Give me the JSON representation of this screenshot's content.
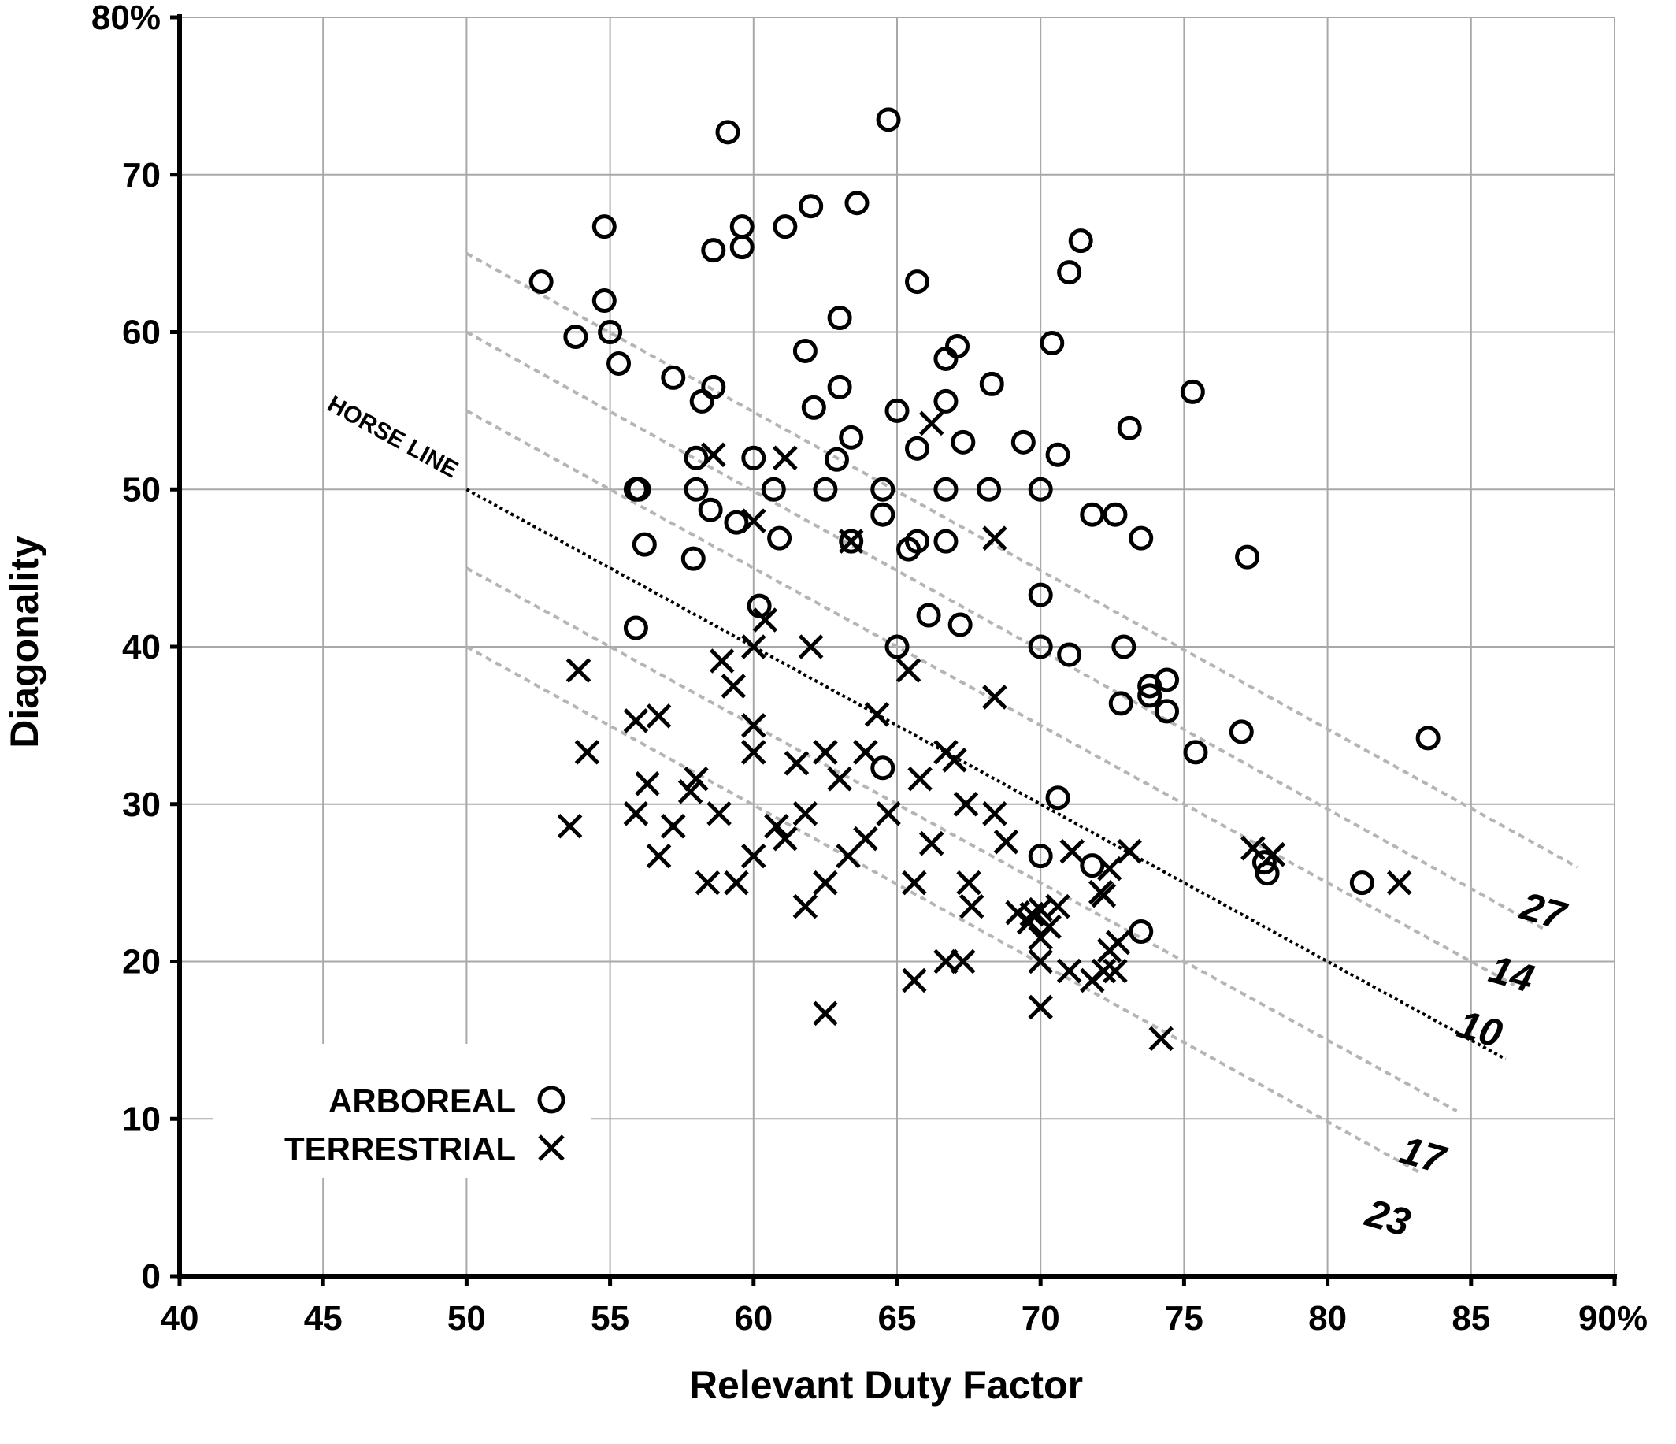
{
  "chart_data": {
    "type": "scatter",
    "xlabel": "Relevant Duty Factor",
    "ylabel": "Diagonality",
    "xlim": [
      40,
      90
    ],
    "ylim": [
      0,
      80
    ],
    "x_ticks": [
      "40",
      "45",
      "50",
      "55",
      "60",
      "65",
      "70",
      "75",
      "80",
      "85",
      "90%"
    ],
    "y_ticks": [
      "0",
      "10",
      "20",
      "30",
      "40",
      "50",
      "60",
      "70",
      "80%"
    ],
    "grid": true,
    "legend_position": "bottom-left",
    "legend": [
      {
        "label": "ARBOREAL",
        "marker": "circle"
      },
      {
        "label": "TERRESTRIAL",
        "marker": "x"
      }
    ],
    "series": [
      {
        "name": "ARBOREAL",
        "marker": "circle",
        "points": [
          [
            52.6,
            63.2
          ],
          [
            53.8,
            59.7
          ],
          [
            54.8,
            62.0
          ],
          [
            54.8,
            66.7
          ],
          [
            55.0,
            60.0
          ],
          [
            55.3,
            58.0
          ],
          [
            55.9,
            50.0
          ],
          [
            56.0,
            50.0
          ],
          [
            56.2,
            46.5
          ],
          [
            55.9,
            41.2
          ],
          [
            57.2,
            57.1
          ],
          [
            58.2,
            55.6
          ],
          [
            58.6,
            56.5
          ],
          [
            58.0,
            52.0
          ],
          [
            58.0,
            50.0
          ],
          [
            58.5,
            48.7
          ],
          [
            57.9,
            45.6
          ],
          [
            58.6,
            65.2
          ],
          [
            59.1,
            72.7
          ],
          [
            59.4,
            47.9
          ],
          [
            59.6,
            66.7
          ],
          [
            59.6,
            65.4
          ],
          [
            60.0,
            52.0
          ],
          [
            60.7,
            50.0
          ],
          [
            60.2,
            42.6
          ],
          [
            60.9,
            46.9
          ],
          [
            61.1,
            66.7
          ],
          [
            61.8,
            58.8
          ],
          [
            62.0,
            68.0
          ],
          [
            62.1,
            55.2
          ],
          [
            62.5,
            50.0
          ],
          [
            63.0,
            60.9
          ],
          [
            63.0,
            56.5
          ],
          [
            62.9,
            51.9
          ],
          [
            63.4,
            53.3
          ],
          [
            63.4,
            46.7
          ],
          [
            63.6,
            68.2
          ],
          [
            64.5,
            50.0
          ],
          [
            64.5,
            48.4
          ],
          [
            64.5,
            32.3
          ],
          [
            64.7,
            73.5
          ],
          [
            65.0,
            55.0
          ],
          [
            65.0,
            40.0
          ],
          [
            65.4,
            46.2
          ],
          [
            65.7,
            46.7
          ],
          [
            65.7,
            52.6
          ],
          [
            65.7,
            63.2
          ],
          [
            66.1,
            42.0
          ],
          [
            66.7,
            58.3
          ],
          [
            66.7,
            55.6
          ],
          [
            66.7,
            50.0
          ],
          [
            66.7,
            46.7
          ],
          [
            67.1,
            59.1
          ],
          [
            67.3,
            53.0
          ],
          [
            67.2,
            41.4
          ],
          [
            68.2,
            50.0
          ],
          [
            68.3,
            56.7
          ],
          [
            69.4,
            53.0
          ],
          [
            70.0,
            50.0
          ],
          [
            70.0,
            43.3
          ],
          [
            70.0,
            40.0
          ],
          [
            70.0,
            26.7
          ],
          [
            70.4,
            59.3
          ],
          [
            70.6,
            52.2
          ],
          [
            70.6,
            30.4
          ],
          [
            71.0,
            63.8
          ],
          [
            71.0,
            39.5
          ],
          [
            71.4,
            65.8
          ],
          [
            71.8,
            48.4
          ],
          [
            71.8,
            26.1
          ],
          [
            72.6,
            48.4
          ],
          [
            72.8,
            36.4
          ],
          [
            72.9,
            40.0
          ],
          [
            73.1,
            53.9
          ],
          [
            73.5,
            46.9
          ],
          [
            73.5,
            21.9
          ],
          [
            73.8,
            37.5
          ],
          [
            73.8,
            36.9
          ],
          [
            74.4,
            37.9
          ],
          [
            74.4,
            35.9
          ],
          [
            75.3,
            56.2
          ],
          [
            75.4,
            33.3
          ],
          [
            77.0,
            34.6
          ],
          [
            77.2,
            45.7
          ],
          [
            77.8,
            26.3
          ],
          [
            77.9,
            25.6
          ],
          [
            81.2,
            25.0
          ],
          [
            83.5,
            34.2
          ]
        ]
      },
      {
        "name": "TERRESTRIAL",
        "marker": "x",
        "points": [
          [
            53.6,
            28.6
          ],
          [
            53.9,
            38.5
          ],
          [
            54.2,
            33.3
          ],
          [
            55.9,
            35.3
          ],
          [
            55.9,
            29.4
          ],
          [
            56.3,
            31.3
          ],
          [
            56.7,
            35.6
          ],
          [
            56.7,
            26.7
          ],
          [
            57.2,
            28.6
          ],
          [
            57.8,
            30.8
          ],
          [
            58.0,
            31.6
          ],
          [
            58.4,
            25.0
          ],
          [
            58.6,
            52.2
          ],
          [
            58.8,
            29.4
          ],
          [
            58.9,
            39.1
          ],
          [
            59.3,
            37.5
          ],
          [
            59.4,
            25.0
          ],
          [
            60.0,
            48.0
          ],
          [
            60.0,
            40.0
          ],
          [
            60.0,
            35.0
          ],
          [
            60.0,
            33.3
          ],
          [
            60.0,
            26.7
          ],
          [
            60.4,
            41.7
          ],
          [
            60.8,
            28.6
          ],
          [
            61.1,
            52.0
          ],
          [
            61.1,
            27.8
          ],
          [
            61.5,
            32.6
          ],
          [
            61.8,
            29.4
          ],
          [
            61.8,
            23.5
          ],
          [
            62.0,
            40.0
          ],
          [
            62.5,
            33.3
          ],
          [
            62.5,
            25.0
          ],
          [
            62.5,
            16.7
          ],
          [
            63.0,
            31.6
          ],
          [
            63.3,
            26.7
          ],
          [
            63.4,
            46.7
          ],
          [
            63.9,
            27.8
          ],
          [
            63.9,
            33.3
          ],
          [
            64.3,
            35.7
          ],
          [
            64.7,
            29.4
          ],
          [
            65.4,
            38.5
          ],
          [
            65.6,
            18.8
          ],
          [
            65.6,
            25.0
          ],
          [
            65.8,
            31.6
          ],
          [
            66.2,
            54.2
          ],
          [
            66.2,
            27.5
          ],
          [
            66.7,
            20.0
          ],
          [
            66.7,
            33.3
          ],
          [
            67.0,
            32.8
          ],
          [
            67.3,
            20.0
          ],
          [
            67.4,
            30.0
          ],
          [
            67.5,
            25.0
          ],
          [
            67.6,
            23.5
          ],
          [
            68.4,
            29.4
          ],
          [
            68.4,
            36.8
          ],
          [
            68.4,
            46.9
          ],
          [
            68.8,
            27.6
          ],
          [
            69.2,
            23.1
          ],
          [
            69.6,
            22.5
          ],
          [
            69.7,
            23.0
          ],
          [
            70.0,
            17.1
          ],
          [
            70.0,
            20.0
          ],
          [
            70.0,
            21.5
          ],
          [
            70.0,
            23.3
          ],
          [
            70.3,
            22.2
          ],
          [
            70.6,
            23.5
          ],
          [
            71.0,
            19.4
          ],
          [
            71.1,
            27.0
          ],
          [
            71.8,
            18.8
          ],
          [
            72.1,
            24.4
          ],
          [
            72.2,
            24.2
          ],
          [
            72.2,
            19.4
          ],
          [
            72.4,
            25.9
          ],
          [
            72.4,
            20.7
          ],
          [
            72.6,
            19.4
          ],
          [
            72.7,
            21.2
          ],
          [
            73.1,
            27.0
          ],
          [
            74.2,
            15.1
          ],
          [
            77.4,
            27.2
          ],
          [
            78.1,
            26.8
          ],
          [
            82.5,
            25.0
          ]
        ]
      }
    ],
    "reference_lines": [
      {
        "label": "27",
        "from": [
          50,
          65
        ],
        "to": [
          88.7,
          26.0
        ],
        "style": "dashed-gray"
      },
      {
        "label": "14",
        "from": [
          50,
          60
        ],
        "to": [
          87.6,
          22.0
        ],
        "style": "dashed-gray"
      },
      {
        "label": "10",
        "from": [
          50,
          55
        ],
        "to": [
          86.5,
          18.5
        ],
        "style": "dashed-gray"
      },
      {
        "label": "",
        "from": [
          50,
          50
        ],
        "to": [
          86.2,
          13.8
        ],
        "style": "dotted-black"
      },
      {
        "label": "17",
        "from": [
          50,
          45
        ],
        "to": [
          84.5,
          10.5
        ],
        "style": "dashed-gray"
      },
      {
        "label": "23",
        "from": [
          50,
          40
        ],
        "to": [
          83.3,
          6.5
        ],
        "style": "dashed-gray"
      }
    ],
    "annotations": [
      {
        "text": "HORSE LINE",
        "attached_to": "dotted-black line"
      }
    ]
  }
}
